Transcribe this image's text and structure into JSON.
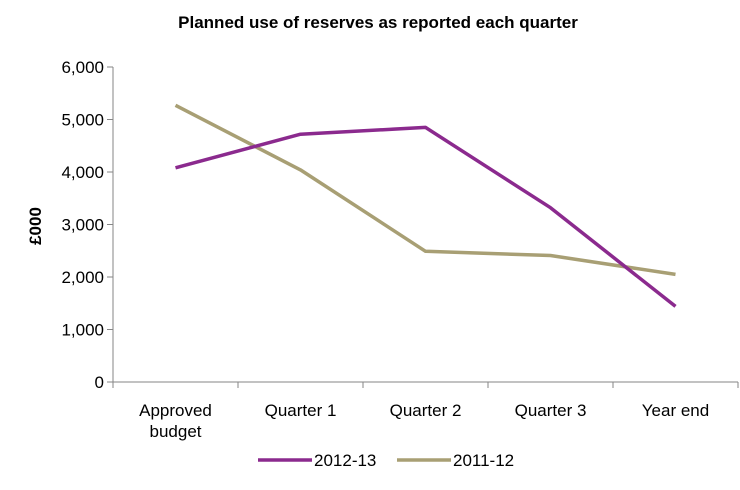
{
  "chart_data": {
    "type": "line",
    "title": "Planned use of reserves as reported each quarter",
    "xlabel": "",
    "ylabel": "£000",
    "categories": [
      [
        "Approved",
        "budget"
      ],
      [
        "Quarter 1"
      ],
      [
        "Quarter 2"
      ],
      [
        "Quarter 3"
      ],
      [
        "Year end"
      ]
    ],
    "ylim": [
      0,
      6000
    ],
    "yticks": [
      "0",
      "1,000",
      "2,000",
      "3,000",
      "4,000",
      "5,000",
      "6,000"
    ],
    "ytick_values": [
      0,
      1000,
      2000,
      3000,
      4000,
      5000,
      6000
    ],
    "grid": false,
    "legend": "bottom",
    "series": [
      {
        "name": "2012-13",
        "color": "#8B2A8E",
        "values": [
          4080,
          4720,
          4850,
          3320,
          1440
        ]
      },
      {
        "name": "2011-12",
        "color": "#A89F74",
        "values": [
          5270,
          4040,
          2490,
          2410,
          2050
        ]
      }
    ]
  }
}
